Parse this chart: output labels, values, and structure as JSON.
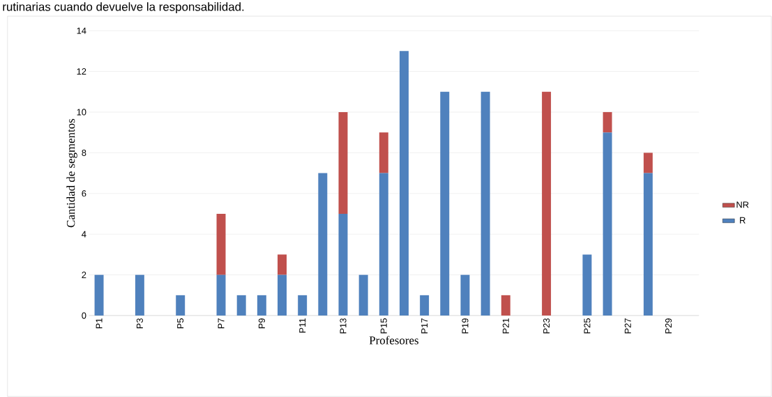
{
  "chart_data": {
    "type": "bar",
    "stacked": true,
    "xlabel": "Profesores",
    "ylabel": "Cantidad de segmentos",
    "categories": [
      "P1",
      null,
      "P3",
      null,
      "P5",
      null,
      "P7",
      null,
      "P9",
      null,
      "P11",
      null,
      "P13",
      null,
      "P15",
      null,
      "P17",
      null,
      "P19",
      null,
      "P21",
      null,
      "P23",
      null,
      "P25",
      null,
      "P27",
      null,
      "P29",
      null
    ],
    "series": [
      {
        "name": "R",
        "color": "#4f81bd",
        "values": [
          2,
          0,
          2,
          0,
          1,
          0,
          2,
          1,
          1,
          2,
          1,
          7,
          5,
          2,
          7,
          13,
          1,
          11,
          2,
          11,
          0,
          0,
          0,
          0,
          3,
          9,
          0,
          7,
          0,
          0
        ]
      },
      {
        "name": "NR",
        "color": "#c0504d",
        "values": [
          0,
          0,
          0,
          0,
          0,
          0,
          3,
          0,
          0,
          1,
          0,
          0,
          5,
          0,
          2,
          0,
          0,
          0,
          0,
          0,
          1,
          0,
          11,
          0,
          0,
          1,
          0,
          1,
          0,
          0
        ]
      }
    ],
    "ylim": [
      0,
      14
    ],
    "yticks": [
      0,
      2,
      4,
      6,
      8,
      10,
      12,
      14
    ],
    "grid": "y",
    "legend": "right",
    "annotations": [
      "rutinarias cuando devuelve la responsabilidad."
    ]
  }
}
